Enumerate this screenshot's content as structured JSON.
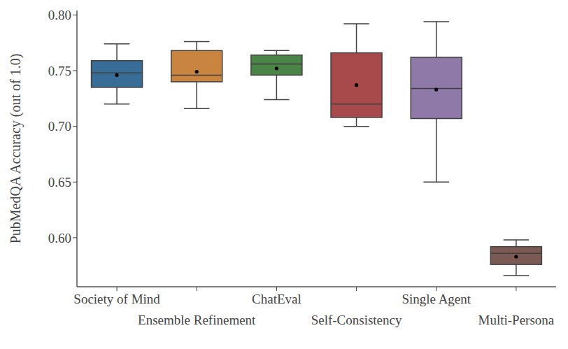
{
  "chart_data": {
    "type": "box",
    "ylabel": "PubMedQA Accuracy (out of 1.0)",
    "categories": [
      "Society of Mind",
      "Ensemble Refinement",
      "ChatEval",
      "Self-Consistency",
      "Single Agent",
      "Multi-Persona"
    ],
    "stats": [
      {
        "whislo": 0.72,
        "q1": 0.735,
        "med": 0.748,
        "q3": 0.759,
        "whishi": 0.774,
        "mean": 0.746
      },
      {
        "whislo": 0.716,
        "q1": 0.74,
        "med": 0.746,
        "q3": 0.768,
        "whishi": 0.776,
        "mean": 0.749
      },
      {
        "whislo": 0.724,
        "q1": 0.746,
        "med": 0.756,
        "q3": 0.764,
        "whishi": 0.768,
        "mean": 0.752
      },
      {
        "whislo": 0.7,
        "q1": 0.708,
        "med": 0.72,
        "q3": 0.766,
        "whishi": 0.792,
        "mean": 0.737
      },
      {
        "whislo": 0.65,
        "q1": 0.707,
        "med": 0.734,
        "q3": 0.762,
        "whishi": 0.794,
        "mean": 0.733
      },
      {
        "whislo": 0.566,
        "q1": 0.576,
        "med": 0.586,
        "q3": 0.592,
        "whishi": 0.598,
        "mean": 0.583
      }
    ],
    "colors": [
      "#386d97",
      "#c98540",
      "#4a8446",
      "#a84a4c",
      "#8e79a8",
      "#7b5a54"
    ],
    "ylim": [
      0.556,
      0.804
    ],
    "yticks": [
      {
        "value": 0.6,
        "label": "0.60"
      },
      0.65,
      {
        "value": 0.7,
        "label": "0.70"
      },
      0.75,
      {
        "value": 0.8,
        "label": "0.80"
      }
    ],
    "grid": false
  }
}
